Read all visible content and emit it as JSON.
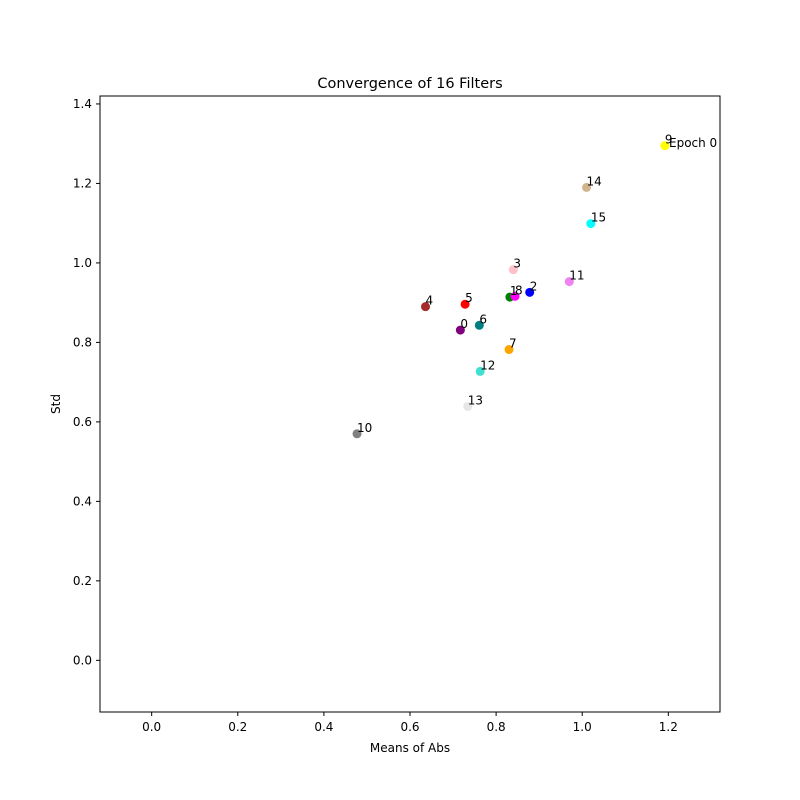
{
  "chart_data": {
    "type": "scatter",
    "title": "Convergence of 16 Filters",
    "xlabel": "Means of Abs",
    "ylabel": "Std",
    "xlim": [
      -0.12,
      1.32
    ],
    "ylim": [
      -0.13,
      1.42
    ],
    "xticks": [
      "0.0",
      "0.2",
      "0.4",
      "0.6",
      "0.8",
      "1.0",
      "1.2"
    ],
    "yticks": [
      "0.0",
      "0.2",
      "0.4",
      "0.6",
      "0.8",
      "1.0",
      "1.2",
      "1.4"
    ],
    "grid": false,
    "annotation": "Epoch  0",
    "points": [
      {
        "label": "0",
        "x": 0.717,
        "y": 0.831,
        "color": "#800080"
      },
      {
        "label": "1",
        "x": 0.832,
        "y": 0.914,
        "color": "#008000"
      },
      {
        "label": "2",
        "x": 0.878,
        "y": 0.926,
        "color": "#0000ff"
      },
      {
        "label": "3",
        "x": 0.84,
        "y": 0.983,
        "color": "#ffc0cb"
      },
      {
        "label": "4",
        "x": 0.636,
        "y": 0.89,
        "color": "#a52a2a"
      },
      {
        "label": "5",
        "x": 0.728,
        "y": 0.896,
        "color": "#ff0000"
      },
      {
        "label": "6",
        "x": 0.761,
        "y": 0.843,
        "color": "#008080"
      },
      {
        "label": "7",
        "x": 0.83,
        "y": 0.782,
        "color": "#ffa500"
      },
      {
        "label": "8",
        "x": 0.844,
        "y": 0.916,
        "color": "#ff00ff"
      },
      {
        "label": "9",
        "x": 1.192,
        "y": 1.295,
        "color": "#ffff00"
      },
      {
        "label": "10",
        "x": 0.477,
        "y": 0.57,
        "color": "#808080"
      },
      {
        "label": "11",
        "x": 0.97,
        "y": 0.953,
        "color": "#ee82ee"
      },
      {
        "label": "12",
        "x": 0.763,
        "y": 0.727,
        "color": "#40e0d0"
      },
      {
        "label": "13",
        "x": 0.734,
        "y": 0.639,
        "color": "#e6e6e6"
      },
      {
        "label": "14",
        "x": 1.01,
        "y": 1.19,
        "color": "#d2b48c"
      },
      {
        "label": "15",
        "x": 1.02,
        "y": 1.099,
        "color": "#00ffff"
      }
    ]
  }
}
